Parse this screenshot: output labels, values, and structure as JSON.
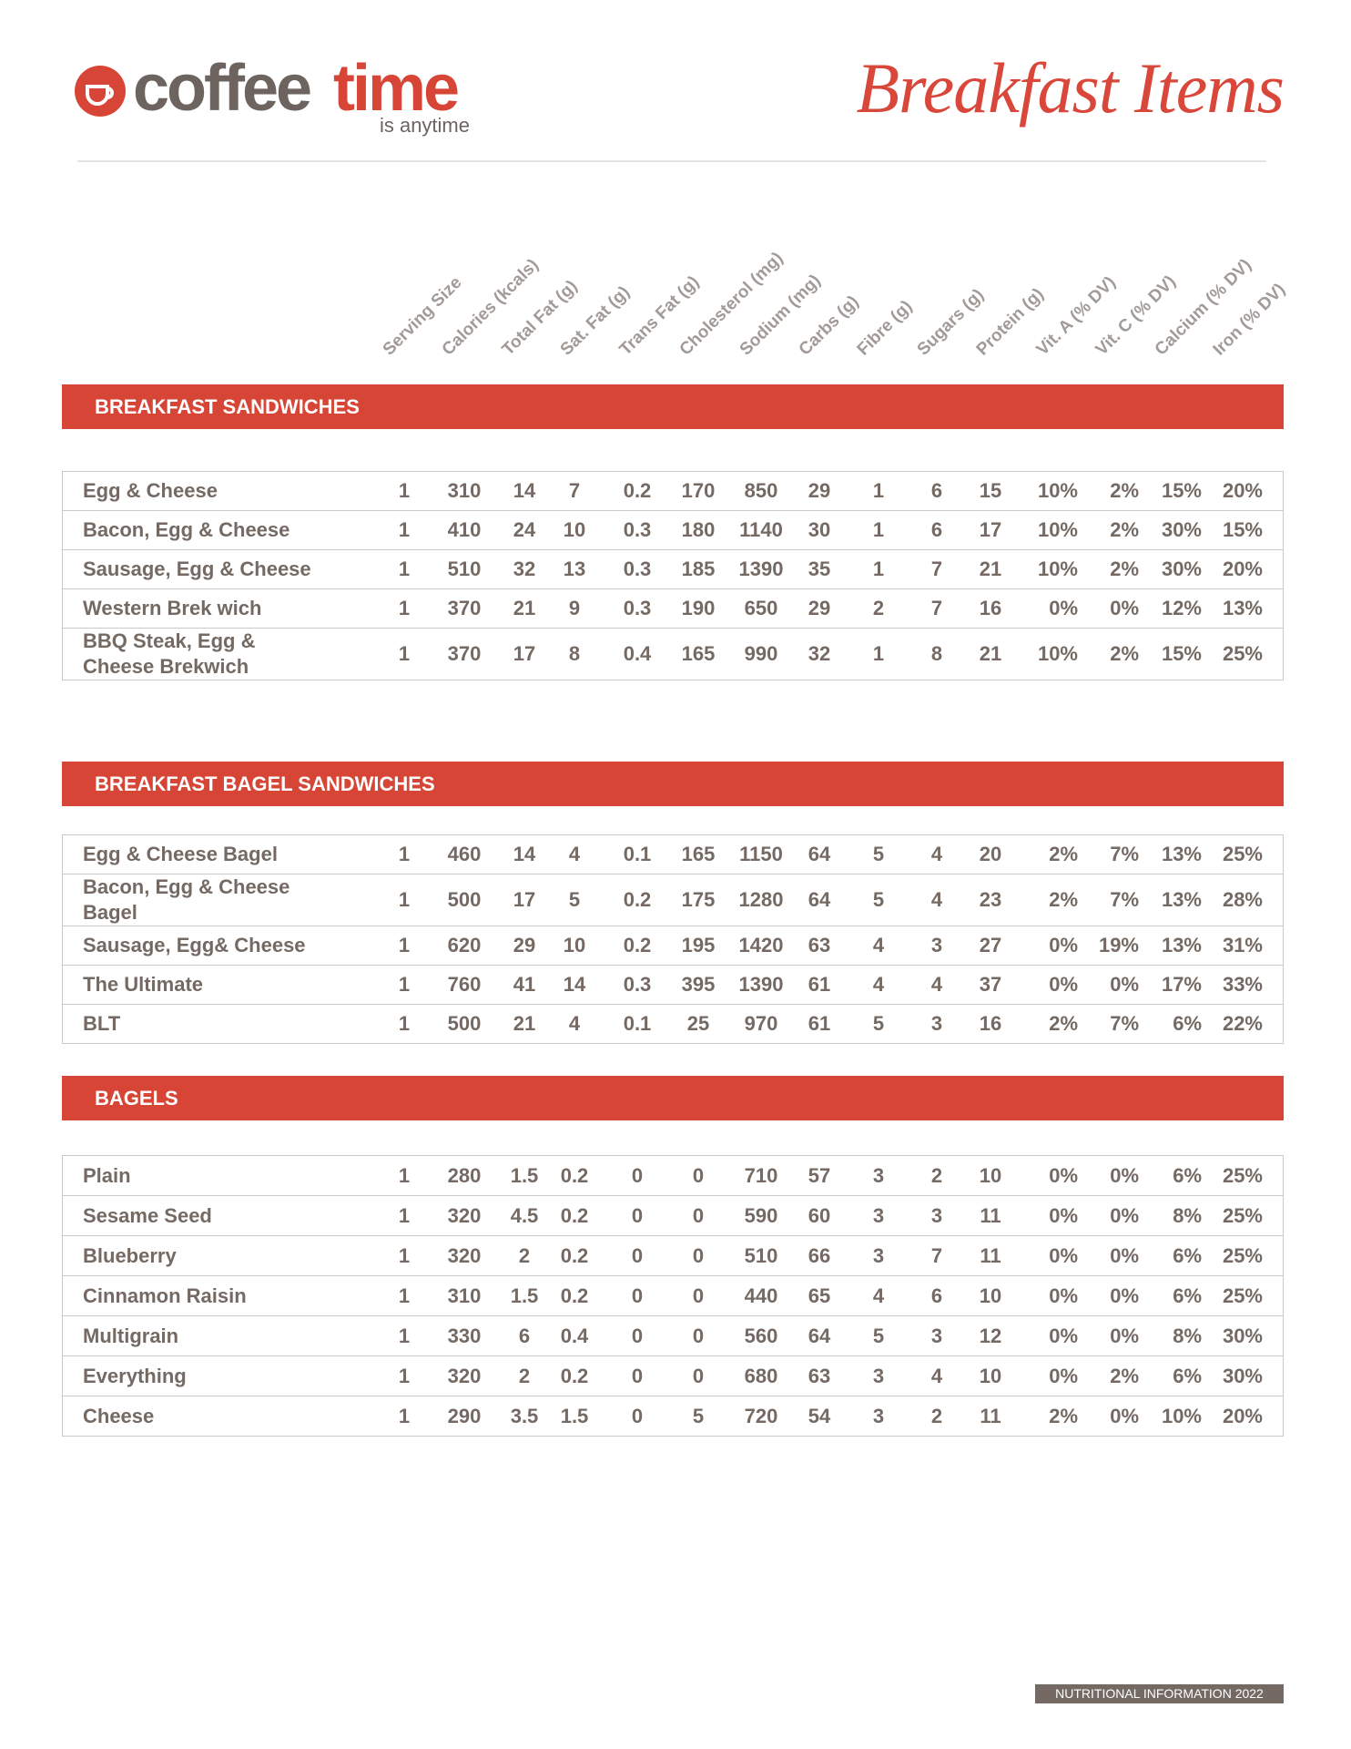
{
  "header": {
    "logo": {
      "word1": "coffee",
      "word2": "time",
      "tagline": "is anytime"
    },
    "title": "Breakfast Items"
  },
  "columns": [
    "Serving Size",
    "Calories (kcals)",
    "Total Fat (g)",
    "Sat. Fat (g)",
    "Trans Fat (g)",
    "Cholesterol (mg)",
    "Sodium (mg)",
    "Carbs (g)",
    "Fibre (g)",
    "Sugars (g)",
    "Protein (g)",
    "Vit. A (% DV)",
    "Vit. C (% DV)",
    "Calcium (% DV)",
    "Iron (% DV)"
  ],
  "sections": [
    {
      "title": "BREAKFAST SANDWICHES",
      "rows": [
        {
          "name": "Egg & Cheese",
          "values": [
            "1",
            "310",
            "14",
            "7",
            "0.2",
            "170",
            "850",
            "29",
            "1",
            "6",
            "15",
            "10%",
            "2%",
            "15%",
            "20%"
          ]
        },
        {
          "name": "Bacon, Egg & Cheese",
          "values": [
            "1",
            "410",
            "24",
            "10",
            "0.3",
            "180",
            "1140",
            "30",
            "1",
            "6",
            "17",
            "10%",
            "2%",
            "30%",
            "15%"
          ]
        },
        {
          "name": "Sausage, Egg & Cheese",
          "values": [
            "1",
            "510",
            "32",
            "13",
            "0.3",
            "185",
            "1390",
            "35",
            "1",
            "7",
            "21",
            "10%",
            "2%",
            "30%",
            "20%"
          ]
        },
        {
          "name": "Western Brek wich",
          "values": [
            "1",
            "370",
            "21",
            "9",
            "0.3",
            "190",
            "650",
            "29",
            "2",
            "7",
            "16",
            "0%",
            "0%",
            "12%",
            "13%"
          ]
        },
        {
          "name": "BBQ Steak, Egg & Cheese Brekwich",
          "values": [
            "1",
            "370",
            "17",
            "8",
            "0.4",
            "165",
            "990",
            "32",
            "1",
            "8",
            "21",
            "10%",
            "2%",
            "15%",
            "25%"
          ]
        }
      ]
    },
    {
      "title": "BREAKFAST BAGEL SANDWICHES",
      "rows": [
        {
          "name": "Egg & Cheese Bagel",
          "values": [
            "1",
            "460",
            "14",
            "4",
            "0.1",
            "165",
            "1150",
            "64",
            "5",
            "4",
            "20",
            "2%",
            "7%",
            "13%",
            "25%"
          ]
        },
        {
          "name": "Bacon, Egg & Cheese Bagel",
          "values": [
            "1",
            "500",
            "17",
            "5",
            "0.2",
            "175",
            "1280",
            "64",
            "5",
            "4",
            "23",
            "2%",
            "7%",
            "13%",
            "28%"
          ]
        },
        {
          "name": "Sausage, Egg& Cheese",
          "values": [
            "1",
            "620",
            "29",
            "10",
            "0.2",
            "195",
            "1420",
            "63",
            "4",
            "3",
            "27",
            "0%",
            "19%",
            "13%",
            "31%"
          ]
        },
        {
          "name": "The Ultimate",
          "values": [
            "1",
            "760",
            "41",
            "14",
            "0.3",
            "395",
            "1390",
            "61",
            "4",
            "4",
            "37",
            "0%",
            "0%",
            "17%",
            "33%"
          ]
        },
        {
          "name": "BLT",
          "values": [
            "1",
            "500",
            "21",
            "4",
            "0.1",
            "25",
            "970",
            "61",
            "5",
            "3",
            "16",
            "2%",
            "7%",
            "6%",
            "22%"
          ]
        }
      ]
    },
    {
      "title": "BAGELS",
      "rows": [
        {
          "name": "Plain",
          "values": [
            "1",
            "280",
            "1.5",
            "0.2",
            "0",
            "0",
            "710",
            "57",
            "3",
            "2",
            "10",
            "0%",
            "0%",
            "6%",
            "25%"
          ]
        },
        {
          "name": "Sesame Seed",
          "values": [
            "1",
            "320",
            "4.5",
            "0.2",
            "0",
            "0",
            "590",
            "60",
            "3",
            "3",
            "11",
            "0%",
            "0%",
            "8%",
            "25%"
          ]
        },
        {
          "name": "Blueberry",
          "values": [
            "1",
            "320",
            "2",
            "0.2",
            "0",
            "0",
            "510",
            "66",
            "3",
            "7",
            "11",
            "0%",
            "0%",
            "6%",
            "25%"
          ]
        },
        {
          "name": "Cinnamon Raisin",
          "values": [
            "1",
            "310",
            "1.5",
            "0.2",
            "0",
            "0",
            "440",
            "65",
            "4",
            "6",
            "10",
            "0%",
            "0%",
            "6%",
            "25%"
          ]
        },
        {
          "name": "Multigrain",
          "values": [
            "1",
            "330",
            "6",
            "0.4",
            "0",
            "0",
            "560",
            "64",
            "5",
            "3",
            "12",
            "0%",
            "0%",
            "8%",
            "30%"
          ]
        },
        {
          "name": "Everything",
          "values": [
            "1",
            "320",
            "2",
            "0.2",
            "0",
            "0",
            "680",
            "63",
            "3",
            "4",
            "10",
            "0%",
            "2%",
            "6%",
            "30%"
          ]
        },
        {
          "name": "Cheese",
          "values": [
            "1",
            "290",
            "3.5",
            "1.5",
            "0",
            "5",
            "720",
            "54",
            "3",
            "2",
            "11",
            "2%",
            "0%",
            "10%",
            "20%"
          ]
        }
      ]
    }
  ],
  "footer": "NUTRITIONAL INFORMATION 2022"
}
